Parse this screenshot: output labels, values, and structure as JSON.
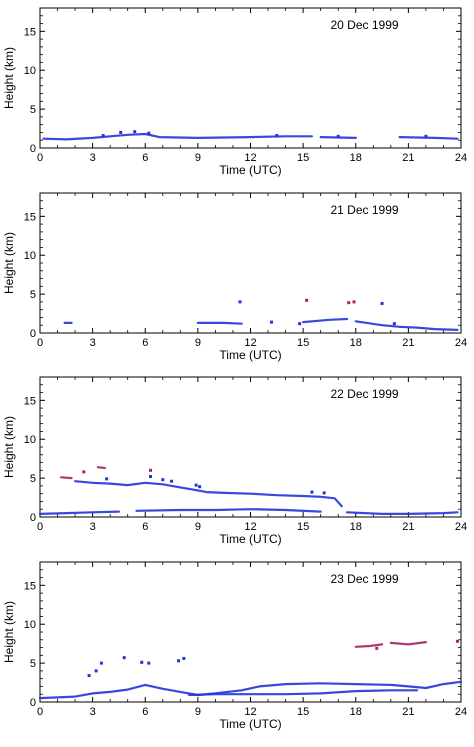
{
  "chart_data": [
    {
      "type": "scatter",
      "title": "20 Dec 1999",
      "xlabel": "Time (UTC)",
      "ylabel": "Height (km)",
      "xlim": [
        0,
        24
      ],
      "ylim": [
        0,
        18
      ],
      "xticks": [
        "0",
        "3",
        "6",
        "9",
        "12",
        "15",
        "18",
        "21",
        "24"
      ],
      "yticks": [
        "0",
        "5",
        "10",
        "15"
      ],
      "series": [
        {
          "color": "#2233dd",
          "segments": [
            [
              [
                0.2,
                1.2
              ],
              [
                1.5,
                1.1
              ],
              [
                3.0,
                1.3
              ],
              [
                4.0,
                1.5
              ],
              [
                5.0,
                1.7
              ],
              [
                6.0,
                1.8
              ],
              [
                6.8,
                1.4
              ],
              [
                9.0,
                1.3
              ],
              [
                12.0,
                1.4
              ],
              [
                14.0,
                1.5
              ],
              [
                15.5,
                1.5
              ]
            ],
            [
              [
                16.0,
                1.4
              ],
              [
                18.0,
                1.3
              ]
            ],
            [
              [
                20.5,
                1.4
              ],
              [
                22.5,
                1.3
              ],
              [
                23.8,
                1.2
              ]
            ]
          ],
          "points": [
            [
              4.6,
              2.0
            ],
            [
              5.4,
              2.1
            ],
            [
              6.2,
              1.9
            ],
            [
              3.6,
              1.6
            ],
            [
              13.5,
              1.6
            ],
            [
              17.0,
              1.5
            ],
            [
              22.0,
              1.5
            ]
          ]
        }
      ]
    },
    {
      "type": "scatter",
      "title": "21 Dec 1999",
      "xlabel": "Time (UTC)",
      "ylabel": "Height (km)",
      "xlim": [
        0,
        24
      ],
      "ylim": [
        0,
        18
      ],
      "xticks": [
        "0",
        "3",
        "6",
        "9",
        "12",
        "15",
        "18",
        "21",
        "24"
      ],
      "yticks": [
        "0",
        "5",
        "10",
        "15"
      ],
      "series": [
        {
          "color": "#2233dd",
          "segments": [
            [
              [
                1.4,
                1.3
              ],
              [
                1.8,
                1.3
              ]
            ],
            [
              [
                9.0,
                1.3
              ],
              [
                10.5,
                1.3
              ],
              [
                11.5,
                1.2
              ]
            ],
            [
              [
                15.0,
                1.4
              ],
              [
                16.5,
                1.7
              ],
              [
                17.5,
                1.8
              ]
            ],
            [
              [
                18.0,
                1.5
              ],
              [
                19.5,
                1.0
              ],
              [
                20.5,
                0.8
              ],
              [
                21.5,
                0.7
              ],
              [
                22.5,
                0.5
              ],
              [
                23.8,
                0.4
              ]
            ]
          ],
          "points": [
            [
              11.4,
              4.0
            ],
            [
              13.2,
              1.4
            ],
            [
              19.5,
              3.8
            ],
            [
              14.8,
              1.2
            ],
            [
              20.2,
              1.2
            ]
          ]
        },
        {
          "color": "#aa2266",
          "segments": [],
          "points": [
            [
              17.6,
              3.9
            ],
            [
              17.9,
              4.0
            ],
            [
              15.2,
              4.2
            ]
          ]
        }
      ]
    },
    {
      "type": "scatter",
      "title": "22 Dec 1999",
      "xlabel": "Time (UTC)",
      "ylabel": "Height (km)",
      "xlim": [
        0,
        24
      ],
      "ylim": [
        0,
        18
      ],
      "xticks": [
        "0",
        "3",
        "6",
        "9",
        "12",
        "15",
        "18",
        "21",
        "24"
      ],
      "yticks": [
        "0",
        "5",
        "10",
        "15"
      ],
      "series": [
        {
          "color": "#2233dd",
          "segments": [
            [
              [
                0.0,
                0.4
              ],
              [
                1.5,
                0.5
              ],
              [
                3.0,
                0.6
              ],
              [
                4.5,
                0.7
              ]
            ],
            [
              [
                5.5,
                0.8
              ],
              [
                8.0,
                0.9
              ],
              [
                10.0,
                0.9
              ],
              [
                12.0,
                1.0
              ],
              [
                14.0,
                0.9
              ],
              [
                16.0,
                0.7
              ]
            ],
            [
              [
                2.0,
                4.6
              ],
              [
                3.0,
                4.4
              ],
              [
                4.0,
                4.3
              ],
              [
                5.0,
                4.1
              ],
              [
                6.0,
                4.4
              ],
              [
                7.0,
                4.2
              ],
              [
                8.0,
                3.8
              ],
              [
                8.8,
                3.5
              ],
              [
                9.5,
                3.2
              ],
              [
                10.5,
                3.1
              ],
              [
                12.0,
                3.0
              ],
              [
                13.5,
                2.8
              ],
              [
                15.0,
                2.7
              ],
              [
                16.0,
                2.6
              ],
              [
                16.8,
                2.4
              ],
              [
                17.2,
                1.4
              ]
            ],
            [
              [
                17.5,
                0.6
              ],
              [
                19.5,
                0.4
              ],
              [
                21.0,
                0.4
              ],
              [
                23.0,
                0.5
              ],
              [
                23.8,
                0.6
              ]
            ]
          ],
          "points": [
            [
              6.3,
              5.2
            ],
            [
              7.0,
              4.8
            ],
            [
              7.5,
              4.6
            ],
            [
              3.8,
              4.9
            ],
            [
              8.9,
              4.1
            ],
            [
              9.1,
              3.9
            ],
            [
              15.5,
              3.2
            ],
            [
              16.2,
              3.1
            ]
          ]
        },
        {
          "color": "#aa2266",
          "segments": [
            [
              [
                1.2,
                5.1
              ],
              [
                1.8,
                5.0
              ]
            ],
            [
              [
                3.3,
                6.4
              ],
              [
                3.7,
                6.3
              ]
            ]
          ],
          "points": [
            [
              2.5,
              5.8
            ],
            [
              6.3,
              6.0
            ]
          ]
        }
      ]
    },
    {
      "type": "scatter",
      "title": "23 Dec 1999",
      "xlabel": "Time (UTC)",
      "ylabel": "Height (km)",
      "xlim": [
        0,
        24
      ],
      "ylim": [
        0,
        18
      ],
      "xticks": [
        "0",
        "3",
        "6",
        "9",
        "12",
        "15",
        "18",
        "21",
        "24"
      ],
      "yticks": [
        "0",
        "5",
        "10",
        "15"
      ],
      "series": [
        {
          "color": "#2233dd",
          "segments": [
            [
              [
                0.0,
                0.5
              ],
              [
                2.0,
                0.7
              ],
              [
                3.0,
                1.1
              ],
              [
                4.0,
                1.3
              ],
              [
                5.0,
                1.6
              ],
              [
                6.0,
                2.2
              ],
              [
                7.0,
                1.7
              ],
              [
                8.0,
                1.3
              ],
              [
                9.0,
                0.9
              ],
              [
                10.0,
                1.1
              ],
              [
                11.5,
                1.5
              ],
              [
                12.5,
                2.0
              ],
              [
                14.0,
                2.3
              ],
              [
                16.0,
                2.4
              ],
              [
                18.0,
                2.3
              ],
              [
                20.0,
                2.2
              ],
              [
                21.0,
                2.0
              ],
              [
                22.0,
                1.8
              ],
              [
                23.0,
                2.3
              ],
              [
                24.0,
                2.6
              ]
            ],
            [
              [
                8.5,
                0.9
              ],
              [
                10.0,
                1.0
              ],
              [
                12.0,
                1.0
              ],
              [
                14.0,
                1.0
              ],
              [
                16.0,
                1.1
              ],
              [
                18.0,
                1.4
              ],
              [
                20.0,
                1.5
              ],
              [
                21.5,
                1.5
              ]
            ]
          ],
          "points": [
            [
              3.5,
              5.0
            ],
            [
              4.8,
              5.7
            ],
            [
              5.8,
              5.1
            ],
            [
              6.2,
              5.0
            ],
            [
              7.9,
              5.3
            ],
            [
              8.2,
              5.6
            ],
            [
              2.8,
              3.4
            ],
            [
              3.2,
              4.0
            ]
          ]
        },
        {
          "color": "#aa2266",
          "segments": [
            [
              [
                18.0,
                7.1
              ],
              [
                18.8,
                7.2
              ],
              [
                19.5,
                7.4
              ]
            ],
            [
              [
                20.0,
                7.6
              ],
              [
                21.0,
                7.4
              ],
              [
                22.0,
                7.7
              ]
            ]
          ],
          "points": [
            [
              19.2,
              6.9
            ],
            [
              23.8,
              7.8
            ]
          ]
        }
      ]
    }
  ]
}
